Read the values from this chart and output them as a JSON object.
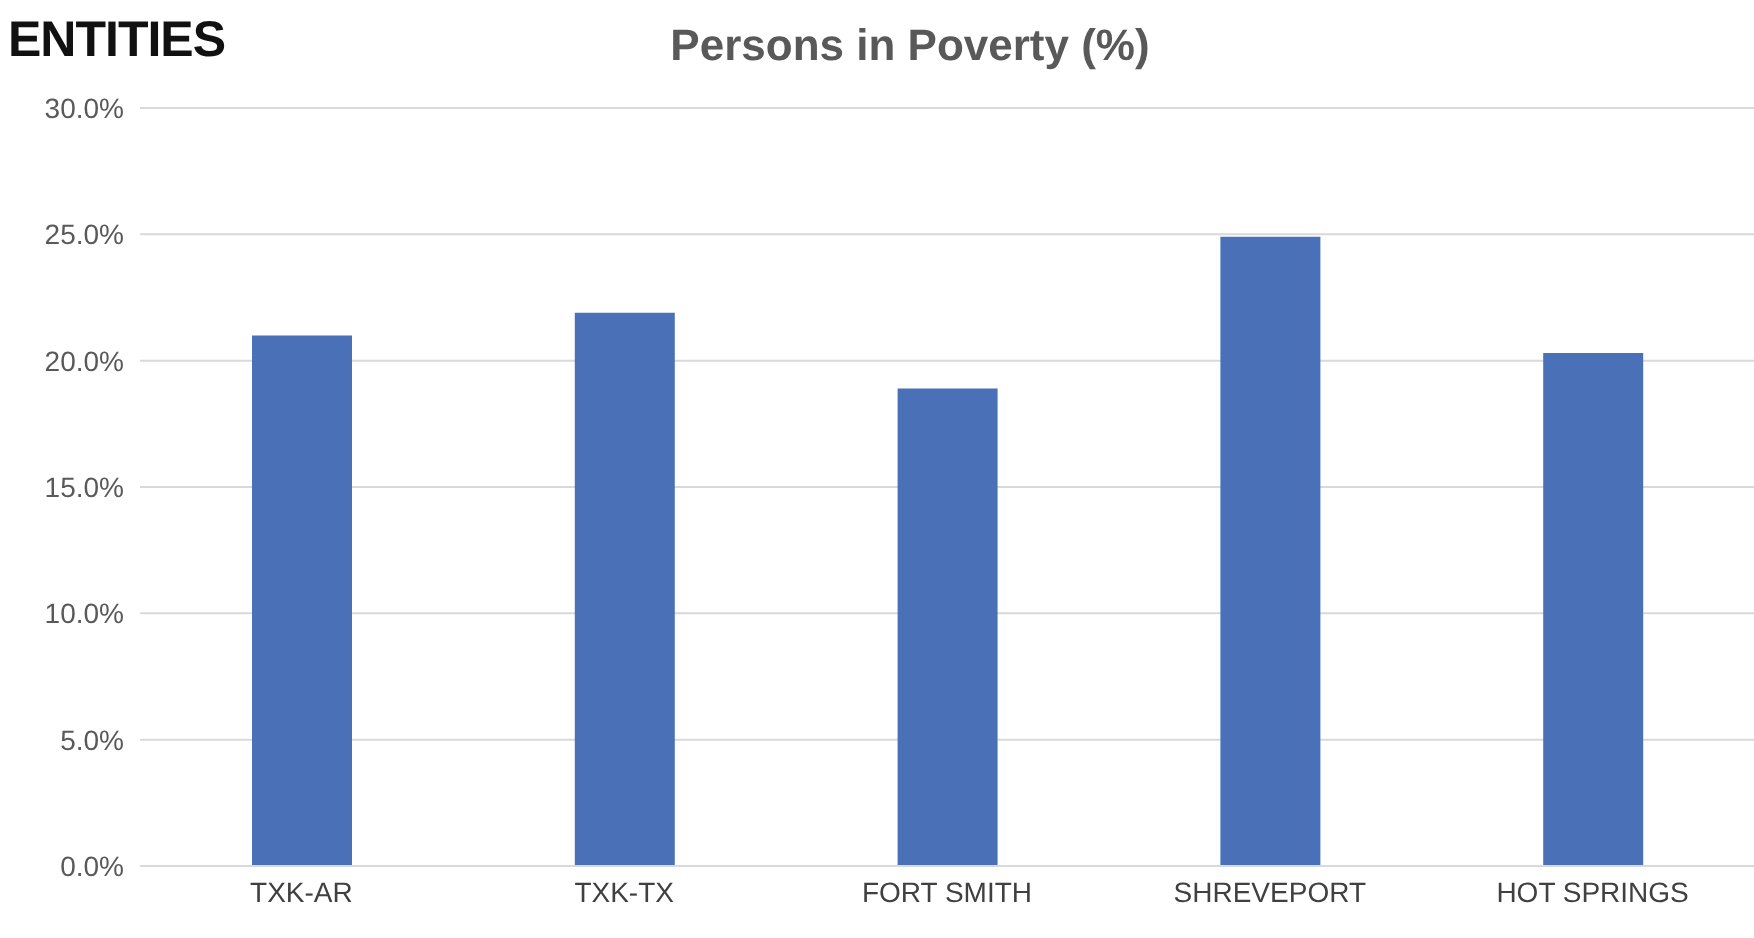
{
  "chart_data": {
    "type": "bar",
    "title": "Persons in Poverty (%)",
    "annotations": [
      "ENTITIES"
    ],
    "categories": [
      "TXK-AR",
      "TXK-TX",
      "FORT SMITH",
      "SHREVEPORT",
      "HOT SPRINGS"
    ],
    "values": [
      21.0,
      21.9,
      18.9,
      24.9,
      20.3
    ],
    "color": "#4a71b8",
    "ylim": [
      0,
      30
    ],
    "yticks": [
      {
        "value": 0,
        "label": "0.0%"
      },
      {
        "value": 5,
        "label": "5.0%"
      },
      {
        "value": 10,
        "label": "10.0%"
      },
      {
        "value": 15,
        "label": "15.0%"
      },
      {
        "value": 20,
        "label": "20.0%"
      },
      {
        "value": 25,
        "label": "25.0%"
      },
      {
        "value": 30,
        "label": "30.0%"
      }
    ],
    "grid": "y",
    "legend": false
  }
}
